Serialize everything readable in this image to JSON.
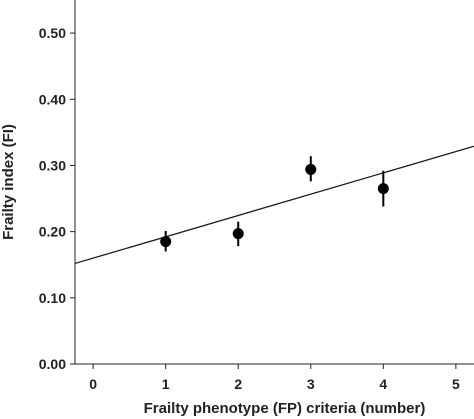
{
  "chart_data": {
    "type": "scatter",
    "xlabel": "Frailty phenotype (FP) criteria (number)",
    "ylabel": "Frailty index (FI)",
    "xlim": [
      -0.25,
      5.25
    ],
    "ylim": [
      0.0,
      0.55
    ],
    "x_ticks": [
      "0",
      "1",
      "2",
      "3",
      "4",
      "5"
    ],
    "y_ticks": [
      "0.00",
      "0.10",
      "0.20",
      "0.30",
      "0.40",
      "0.50"
    ],
    "grid": false,
    "points": [
      {
        "x": 1,
        "y": 0.185,
        "err_low": 0.17,
        "err_high": 0.201
      },
      {
        "x": 2,
        "y": 0.197,
        "err_low": 0.178,
        "err_high": 0.215
      },
      {
        "x": 3,
        "y": 0.294,
        "err_low": 0.276,
        "err_high": 0.314
      },
      {
        "x": 4,
        "y": 0.265,
        "err_low": 0.238,
        "err_high": 0.292
      }
    ],
    "fit_line": {
      "intercept": 0.16,
      "slope": 0.0322
    },
    "colors": {
      "marker": "#000000",
      "line": "#1a1a1a",
      "axis": "#222222"
    }
  }
}
